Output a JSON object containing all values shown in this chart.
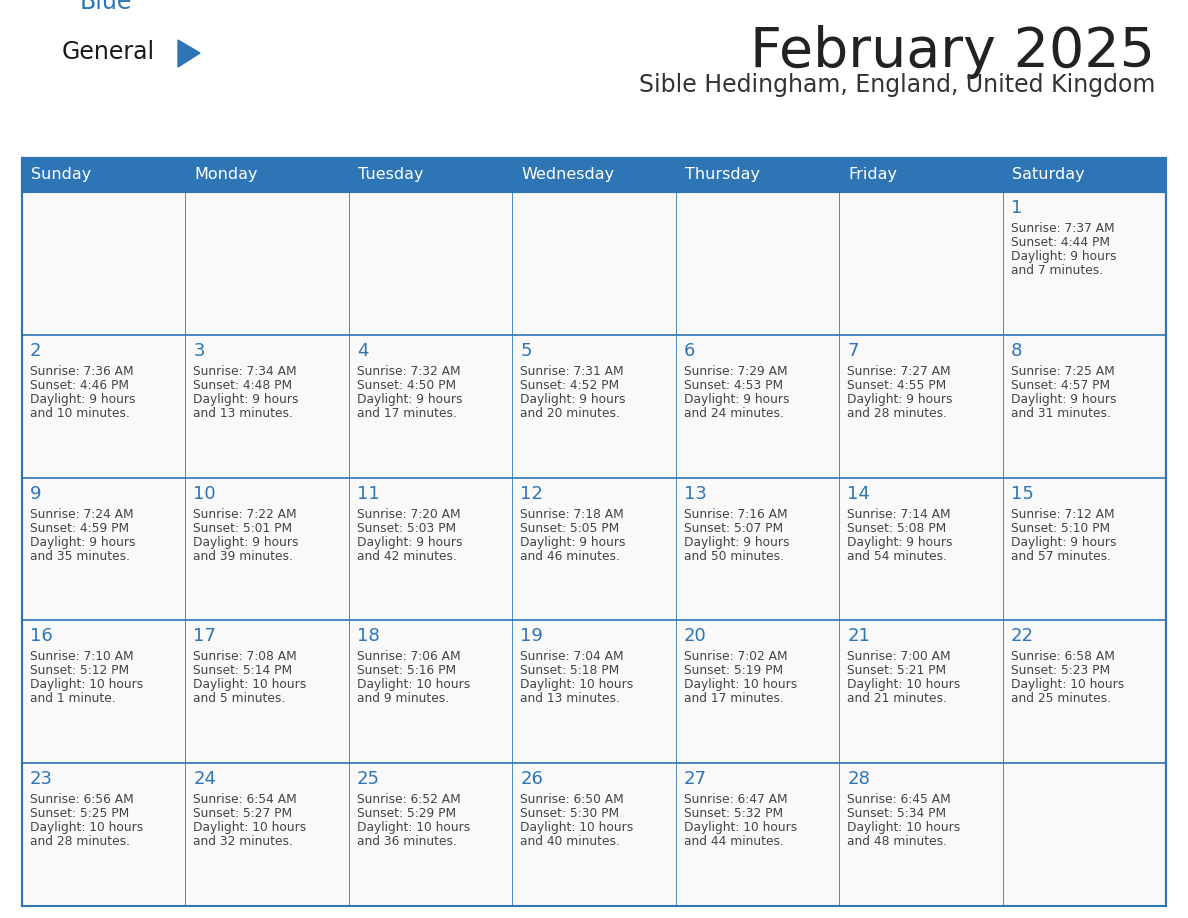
{
  "title": "February 2025",
  "subtitle": "Sible Hedingham, England, United Kingdom",
  "days_of_week": [
    "Sunday",
    "Monday",
    "Tuesday",
    "Wednesday",
    "Thursday",
    "Friday",
    "Saturday"
  ],
  "header_bg": "#2E75B6",
  "header_text_color": "#FFFFFF",
  "cell_bg": "#F9F9F9",
  "cell_border_color": "#2E75B6",
  "title_color": "#222222",
  "subtitle_color": "#333333",
  "day_number_color": "#2E75B6",
  "info_text_color": "#444444",
  "logo_general_color": "#1a1a1a",
  "logo_blue_color": "#2E75B6",
  "calendar_data": [
    [
      null,
      null,
      null,
      null,
      null,
      null,
      {
        "day": 1,
        "sunrise": "7:37 AM",
        "sunset": "4:44 PM",
        "daylight": "9 hours and 7 minutes."
      }
    ],
    [
      {
        "day": 2,
        "sunrise": "7:36 AM",
        "sunset": "4:46 PM",
        "daylight": "9 hours and 10 minutes."
      },
      {
        "day": 3,
        "sunrise": "7:34 AM",
        "sunset": "4:48 PM",
        "daylight": "9 hours and 13 minutes."
      },
      {
        "day": 4,
        "sunrise": "7:32 AM",
        "sunset": "4:50 PM",
        "daylight": "9 hours and 17 minutes."
      },
      {
        "day": 5,
        "sunrise": "7:31 AM",
        "sunset": "4:52 PM",
        "daylight": "9 hours and 20 minutes."
      },
      {
        "day": 6,
        "sunrise": "7:29 AM",
        "sunset": "4:53 PM",
        "daylight": "9 hours and 24 minutes."
      },
      {
        "day": 7,
        "sunrise": "7:27 AM",
        "sunset": "4:55 PM",
        "daylight": "9 hours and 28 minutes."
      },
      {
        "day": 8,
        "sunrise": "7:25 AM",
        "sunset": "4:57 PM",
        "daylight": "9 hours and 31 minutes."
      }
    ],
    [
      {
        "day": 9,
        "sunrise": "7:24 AM",
        "sunset": "4:59 PM",
        "daylight": "9 hours and 35 minutes."
      },
      {
        "day": 10,
        "sunrise": "7:22 AM",
        "sunset": "5:01 PM",
        "daylight": "9 hours and 39 minutes."
      },
      {
        "day": 11,
        "sunrise": "7:20 AM",
        "sunset": "5:03 PM",
        "daylight": "9 hours and 42 minutes."
      },
      {
        "day": 12,
        "sunrise": "7:18 AM",
        "sunset": "5:05 PM",
        "daylight": "9 hours and 46 minutes."
      },
      {
        "day": 13,
        "sunrise": "7:16 AM",
        "sunset": "5:07 PM",
        "daylight": "9 hours and 50 minutes."
      },
      {
        "day": 14,
        "sunrise": "7:14 AM",
        "sunset": "5:08 PM",
        "daylight": "9 hours and 54 minutes."
      },
      {
        "day": 15,
        "sunrise": "7:12 AM",
        "sunset": "5:10 PM",
        "daylight": "9 hours and 57 minutes."
      }
    ],
    [
      {
        "day": 16,
        "sunrise": "7:10 AM",
        "sunset": "5:12 PM",
        "daylight": "10 hours and 1 minute."
      },
      {
        "day": 17,
        "sunrise": "7:08 AM",
        "sunset": "5:14 PM",
        "daylight": "10 hours and 5 minutes."
      },
      {
        "day": 18,
        "sunrise": "7:06 AM",
        "sunset": "5:16 PM",
        "daylight": "10 hours and 9 minutes."
      },
      {
        "day": 19,
        "sunrise": "7:04 AM",
        "sunset": "5:18 PM",
        "daylight": "10 hours and 13 minutes."
      },
      {
        "day": 20,
        "sunrise": "7:02 AM",
        "sunset": "5:19 PM",
        "daylight": "10 hours and 17 minutes."
      },
      {
        "day": 21,
        "sunrise": "7:00 AM",
        "sunset": "5:21 PM",
        "daylight": "10 hours and 21 minutes."
      },
      {
        "day": 22,
        "sunrise": "6:58 AM",
        "sunset": "5:23 PM",
        "daylight": "10 hours and 25 minutes."
      }
    ],
    [
      {
        "day": 23,
        "sunrise": "6:56 AM",
        "sunset": "5:25 PM",
        "daylight": "10 hours and 28 minutes."
      },
      {
        "day": 24,
        "sunrise": "6:54 AM",
        "sunset": "5:27 PM",
        "daylight": "10 hours and 32 minutes."
      },
      {
        "day": 25,
        "sunrise": "6:52 AM",
        "sunset": "5:29 PM",
        "daylight": "10 hours and 36 minutes."
      },
      {
        "day": 26,
        "sunrise": "6:50 AM",
        "sunset": "5:30 PM",
        "daylight": "10 hours and 40 minutes."
      },
      {
        "day": 27,
        "sunrise": "6:47 AM",
        "sunset": "5:32 PM",
        "daylight": "10 hours and 44 minutes."
      },
      {
        "day": 28,
        "sunrise": "6:45 AM",
        "sunset": "5:34 PM",
        "daylight": "10 hours and 48 minutes."
      },
      null
    ]
  ]
}
